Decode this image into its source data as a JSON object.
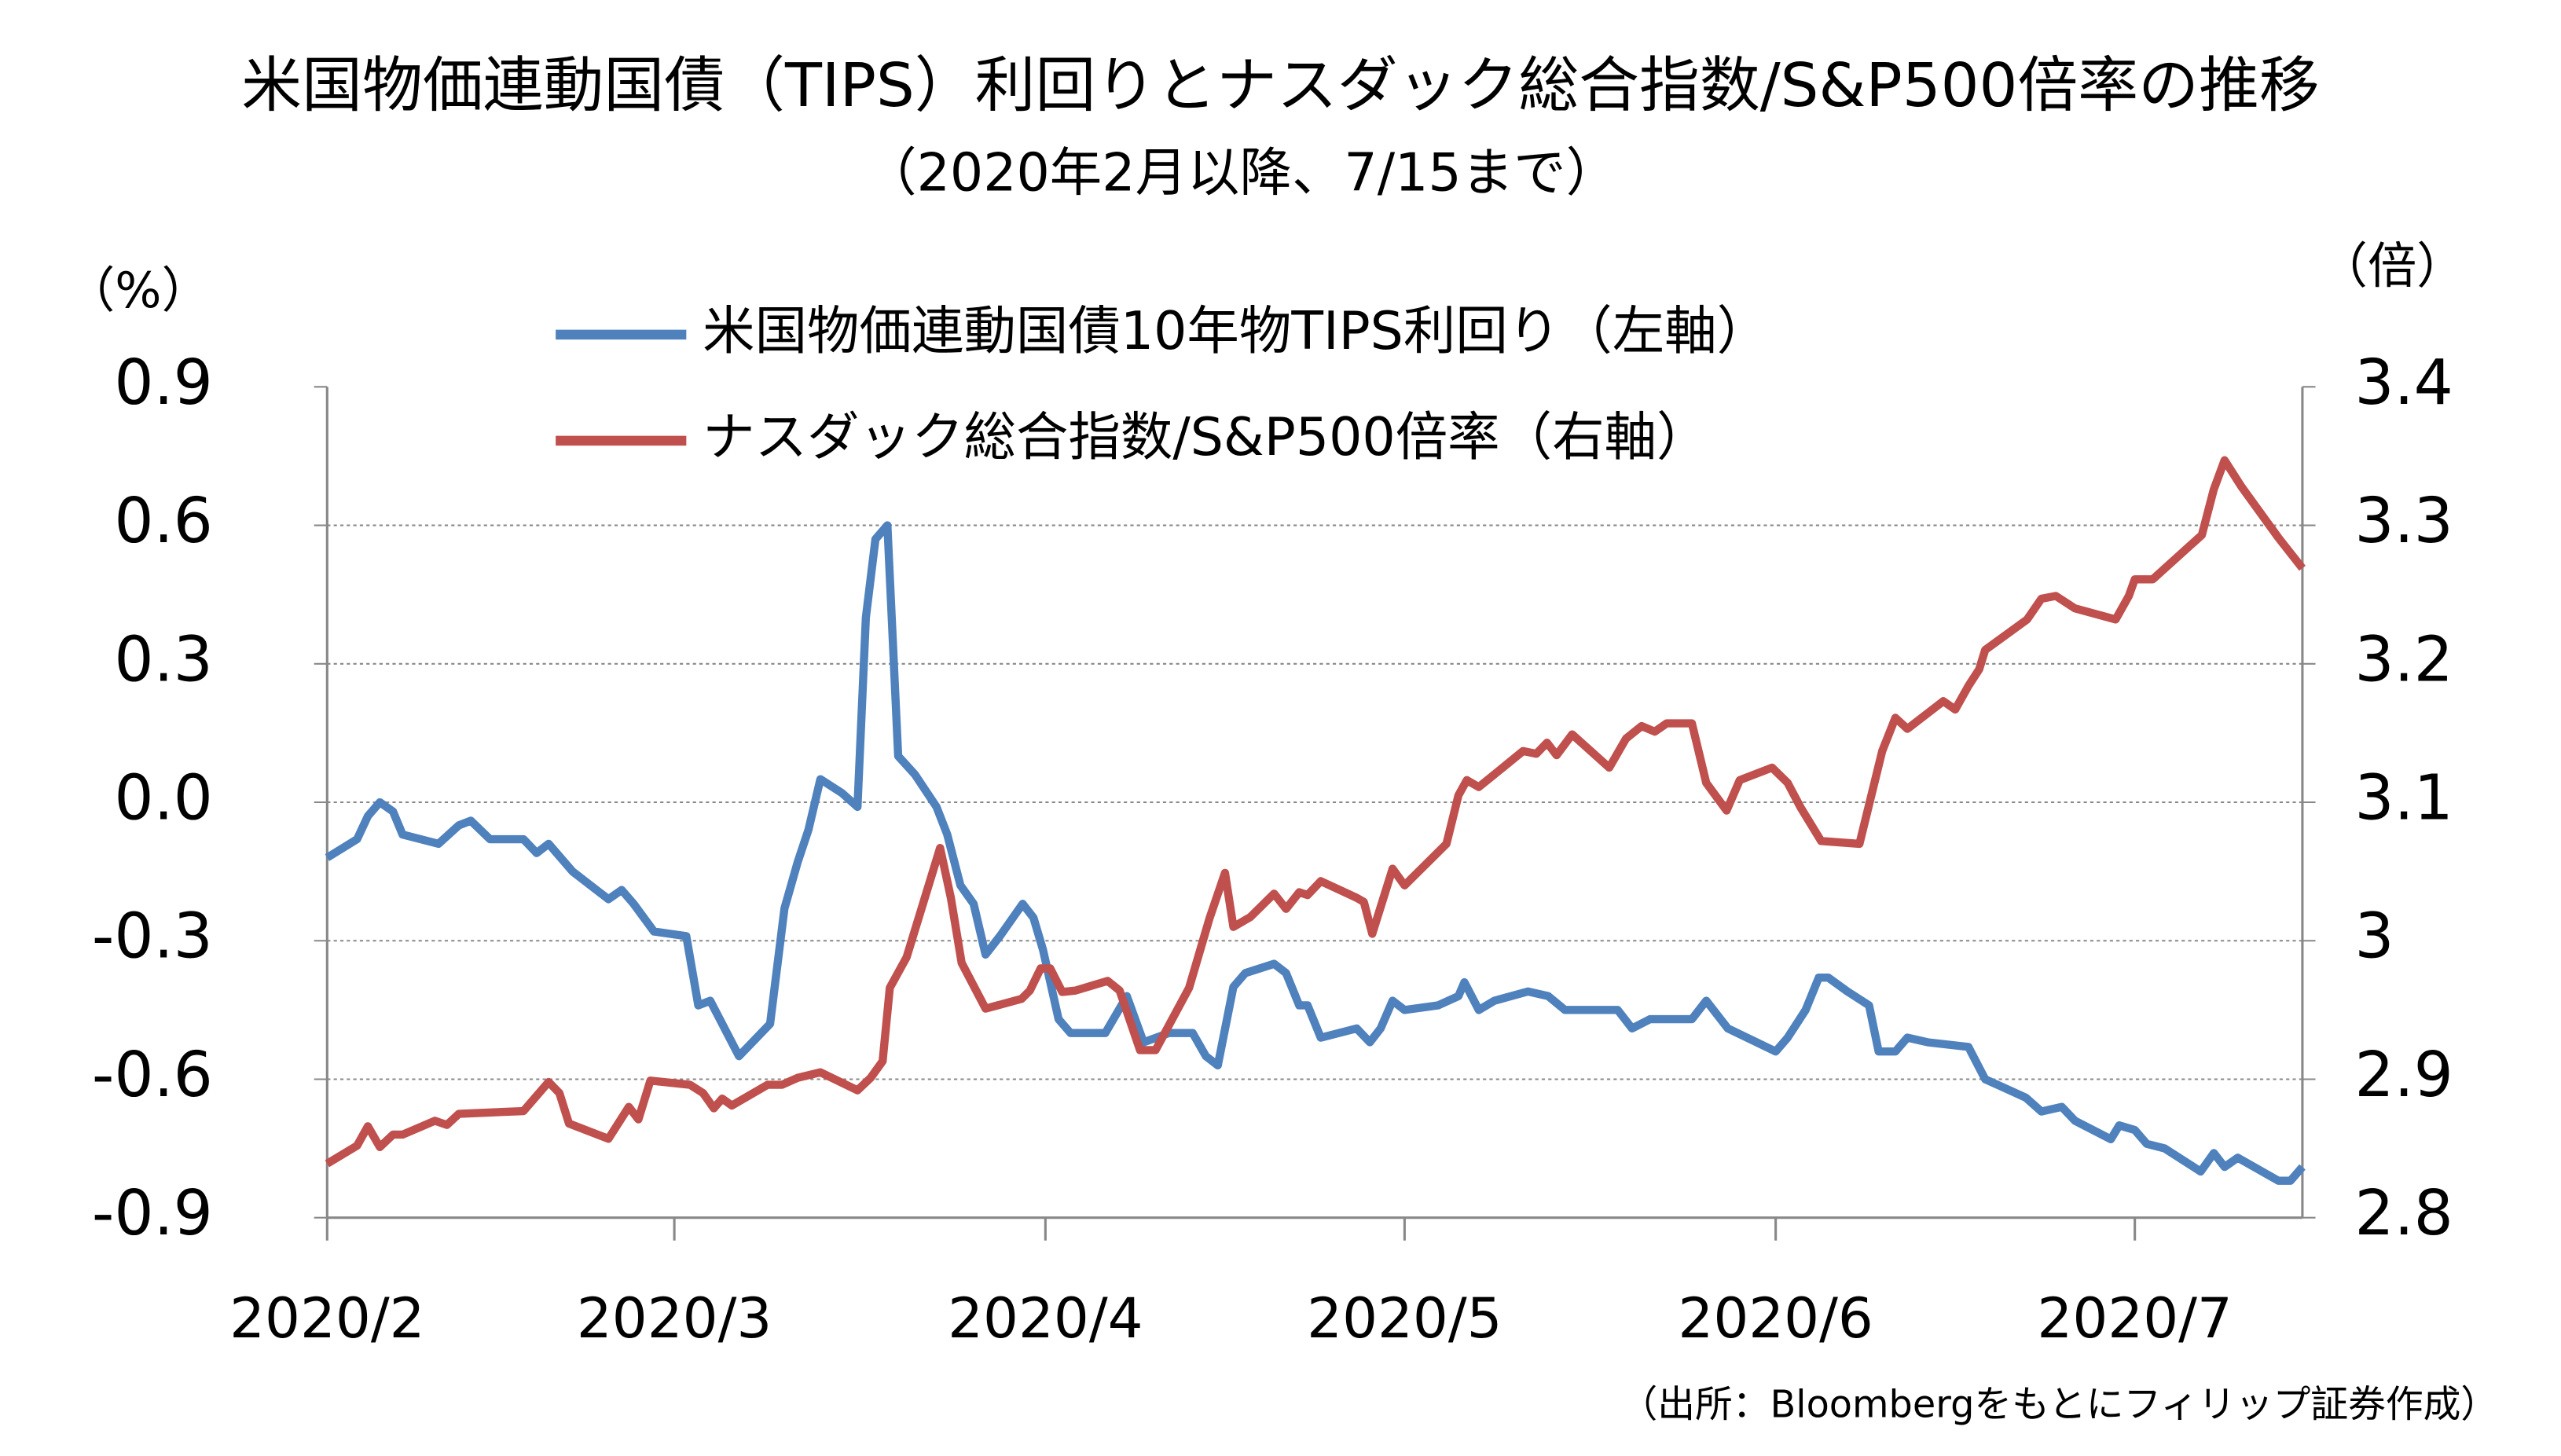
{
  "chart_data": {
    "type": "line",
    "title": "米国物価連動国債（TIPS）利回りとナスダック総合指数/S&P500倍率の推移",
    "subtitle": "（2020年2月以降、7/15まで）",
    "y_label": "（%）",
    "y2_label": "（倍）",
    "source": "（出所：Bloombergをもとにフィリップ証券作成）",
    "xlim": [
      0,
      165
    ],
    "xticks": [
      {
        "value": 0,
        "label": "2020/2"
      },
      {
        "value": 29,
        "label": "2020/3"
      },
      {
        "value": 60,
        "label": "2020/4"
      },
      {
        "value": 90,
        "label": "2020/5"
      },
      {
        "value": 121,
        "label": "2020/6"
      },
      {
        "value": 151,
        "label": "2020/7"
      }
    ],
    "ylim": [
      -0.9,
      0.9
    ],
    "yticks": [
      {
        "value": 0.9,
        "label": "0.9"
      },
      {
        "value": 0.6,
        "label": "0.6"
      },
      {
        "value": 0.3,
        "label": "0.3"
      },
      {
        "value": 0,
        "label": "0.0"
      },
      {
        "value": -0.3,
        "label": "-0.3"
      },
      {
        "value": -0.6,
        "label": "-0.6"
      },
      {
        "value": -0.9,
        "label": "-0.9"
      }
    ],
    "negative_tick_color": "#ff0000",
    "y2lim": [
      2.8,
      3.4
    ],
    "y2ticks": [
      3.4,
      3.3,
      3.2,
      3.1,
      3,
      2.9,
      2.8
    ],
    "grid": true,
    "series": [
      {
        "name": "米国物価連動国債10年物TIPS利回り（左軸）",
        "color": "#4f81bd",
        "axis": "y",
        "x": [
          0,
          2.5,
          3.4,
          4.4,
          5.5,
          6.3,
          9.3,
          11,
          12,
          13.6,
          16.4,
          17.5,
          18.5,
          20.5,
          23.5,
          24.6,
          25.6,
          27.3,
          30,
          31,
          32,
          34.4,
          37,
          38.2,
          39.3,
          40.2,
          41.2,
          43,
          44.3,
          45,
          45.8,
          46.8,
          47.7,
          49.1,
          50.9,
          51.8,
          52.9,
          54,
          55,
          56.2,
          58.1,
          59,
          59.8,
          61.1,
          62.1,
          65,
          66.8,
          68.2,
          70.3,
          72.3,
          73.4,
          74.4,
          75.7,
          76.7,
          79.1,
          80.1,
          81.2,
          81.9,
          83,
          86,
          87.1,
          88,
          89,
          90,
          92.8,
          94.5,
          95,
          96.2,
          97.5,
          100.3,
          102,
          103.4,
          107.8,
          109,
          110.5,
          114,
          115.2,
          117,
          121,
          122,
          123.5,
          124.6,
          125.4,
          127,
          128.8,
          129.6,
          131,
          132,
          133.7,
          137.1,
          138.5,
          141.9,
          143.2,
          144.9,
          146,
          149,
          149.7,
          151,
          152,
          153.5,
          156.5,
          157.6,
          158.5,
          159.6,
          163,
          164,
          165
        ],
        "values": [
          -0.12,
          -0.08,
          -0.03,
          0.0,
          -0.02,
          -0.07,
          -0.09,
          -0.05,
          -0.04,
          -0.08,
          -0.08,
          -0.11,
          -0.09,
          -0.15,
          -0.21,
          -0.19,
          -0.22,
          -0.28,
          -0.29,
          -0.44,
          -0.43,
          -0.55,
          -0.48,
          -0.23,
          -0.13,
          -0.06,
          0.05,
          0.02,
          -0.01,
          0.4,
          0.57,
          0.6,
          0.1,
          0.06,
          -0.01,
          -0.07,
          -0.18,
          -0.22,
          -0.33,
          -0.29,
          -0.22,
          -0.25,
          -0.32,
          -0.47,
          -0.5,
          -0.5,
          -0.42,
          -0.52,
          -0.5,
          -0.5,
          -0.55,
          -0.57,
          -0.4,
          -0.37,
          -0.35,
          -0.37,
          -0.44,
          -0.44,
          -0.51,
          -0.49,
          -0.52,
          -0.49,
          -0.43,
          -0.45,
          -0.44,
          -0.42,
          -0.39,
          -0.45,
          -0.43,
          -0.41,
          -0.42,
          -0.45,
          -0.45,
          -0.49,
          -0.47,
          -0.47,
          -0.43,
          -0.49,
          -0.54,
          -0.51,
          -0.45,
          -0.38,
          -0.38,
          -0.41,
          -0.44,
          -0.54,
          -0.54,
          -0.51,
          -0.52,
          -0.53,
          -0.6,
          -0.64,
          -0.67,
          -0.66,
          -0.69,
          -0.73,
          -0.7,
          -0.71,
          -0.74,
          -0.75,
          -0.8,
          -0.76,
          -0.79,
          -0.77,
          -0.82,
          -0.82,
          -0.79
        ]
      },
      {
        "name": "ナスダック総合指数/S&P500倍率（右軸）",
        "color": "#c0504d",
        "axis": "y2",
        "x": [
          0,
          2.5,
          3.4,
          4.4,
          5.5,
          6.3,
          9,
          10,
          11,
          16.4,
          18.5,
          19.4,
          20.2,
          23.5,
          25.2,
          26,
          27,
          30.3,
          31.4,
          32.3,
          33,
          33.8,
          36.8,
          38,
          39.3,
          41.2,
          44.3,
          45.4,
          46.4,
          47,
          48.4,
          51.2,
          52.1,
          53,
          55,
          58,
          58.7,
          59.6,
          60.4,
          61.4,
          62.5,
          65.2,
          66.2,
          67.9,
          69.2,
          72,
          73.7,
          75,
          75.7,
          77.1,
          79.1,
          80.1,
          81.2,
          81.9,
          83,
          86,
          86.6,
          87.3,
          89,
          90,
          93.5,
          94.5,
          95.2,
          96.2,
          98.2,
          99.9,
          101,
          101.9,
          102.7,
          104,
          107.1,
          108.5,
          109.8,
          110.9,
          111.9,
          114,
          115.2,
          116.9,
          118,
          120.7,
          122,
          123.1,
          124.8,
          128,
          129.9,
          131,
          132,
          135,
          136,
          137.1,
          138,
          138.5,
          142,
          143.2,
          144.4,
          146,
          149.4,
          150.5,
          151,
          152.5,
          156.6,
          157.6,
          158.5,
          159.9,
          163,
          165
        ],
        "values": [
          2.839,
          2.852,
          2.866,
          2.851,
          2.86,
          2.86,
          2.87,
          2.867,
          2.875,
          2.877,
          2.898,
          2.89,
          2.868,
          2.857,
          2.88,
          2.871,
          2.899,
          2.896,
          2.89,
          2.879,
          2.886,
          2.881,
          2.896,
          2.896,
          2.901,
          2.905,
          2.892,
          2.901,
          2.913,
          2.966,
          2.988,
          3.067,
          3.031,
          2.984,
          2.951,
          2.958,
          2.964,
          2.98,
          2.98,
          2.963,
          2.964,
          2.971,
          2.964,
          2.921,
          2.921,
          2.966,
          3.016,
          3.049,
          3.01,
          3.017,
          3.034,
          3.023,
          3.035,
          3.033,
          3.043,
          3.031,
          3.028,
          3.005,
          3.052,
          3.04,
          3.07,
          3.105,
          3.116,
          3.111,
          3.125,
          3.137,
          3.135,
          3.143,
          3.134,
          3.149,
          3.125,
          3.146,
          3.155,
          3.151,
          3.157,
          3.157,
          3.114,
          3.094,
          3.116,
          3.125,
          3.114,
          3.096,
          3.072,
          3.07,
          3.137,
          3.161,
          3.153,
          3.173,
          3.167,
          3.184,
          3.196,
          3.21,
          3.232,
          3.247,
          3.249,
          3.24,
          3.232,
          3.249,
          3.261,
          3.261,
          3.293,
          3.326,
          3.347,
          3.328,
          3.291,
          3.269
        ]
      }
    ]
  }
}
